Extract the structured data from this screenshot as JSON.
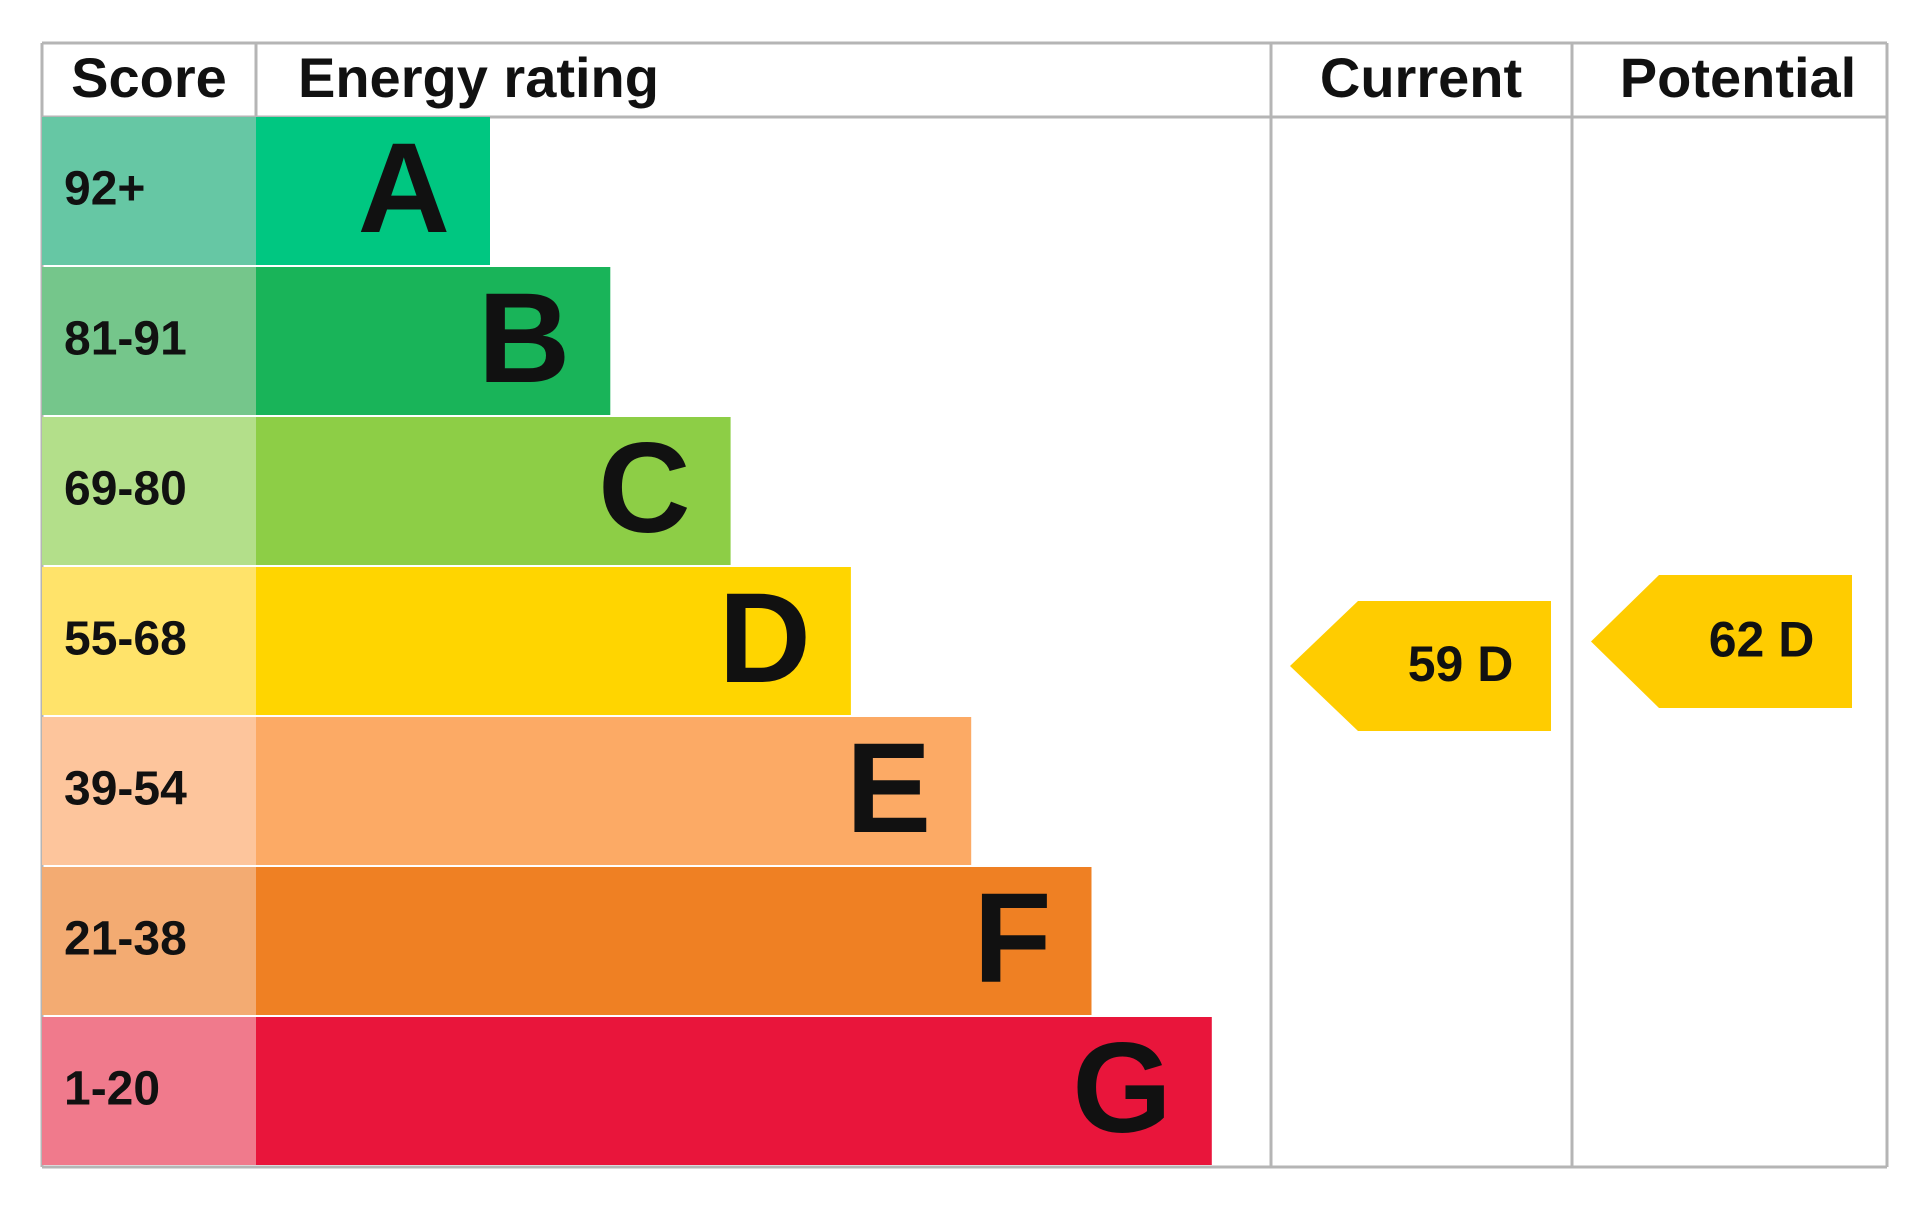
{
  "header": {
    "score": "Score",
    "rating": "Energy rating",
    "current": "Current",
    "potential": "Potential"
  },
  "bands": [
    {
      "score": "92+",
      "letter": "A",
      "color": "#00c781",
      "score_color": "#66c7a4"
    },
    {
      "score": "81-91",
      "letter": "B",
      "color": "#19b459",
      "score_color": "#75c68b"
    },
    {
      "score": "69-80",
      "letter": "C",
      "color": "#8dce46",
      "score_color": "#b3df8a"
    },
    {
      "score": "55-68",
      "letter": "D",
      "color": "#ffd500",
      "score_color": "#ffe36a"
    },
    {
      "score": "39-54",
      "letter": "E",
      "color": "#fcaa65",
      "score_color": "#fdc59c"
    },
    {
      "score": "21-38",
      "letter": "F",
      "color": "#ef8023",
      "score_color": "#f3ab72"
    },
    {
      "score": "1-20",
      "letter": "G",
      "color": "#e9153b",
      "score_color": "#f07a8c"
    }
  ],
  "current": {
    "label": "59 D",
    "color": "#ffcc00"
  },
  "potential": {
    "label": "62 D",
    "color": "#ffcc00"
  }
}
